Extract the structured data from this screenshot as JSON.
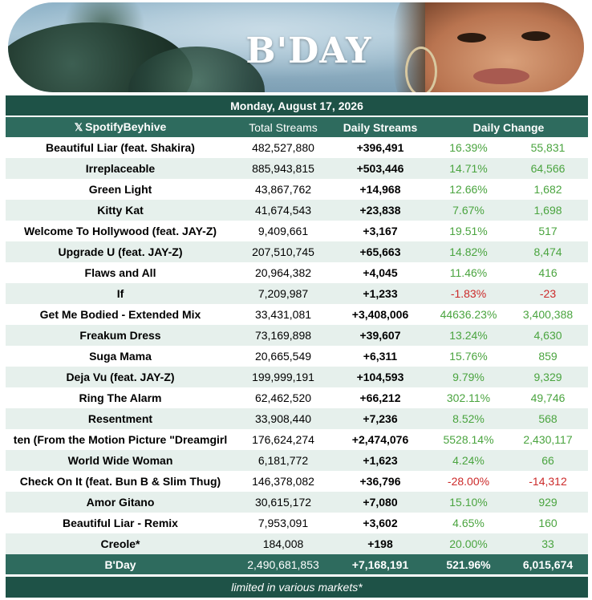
{
  "banner": {
    "title": "B'DAY"
  },
  "date": "Monday, August 17, 2026",
  "headers": {
    "account": "SpotifyBeyhive",
    "total": "Total Streams",
    "daily": "Daily Streams",
    "change": "Daily Change"
  },
  "rows": [
    {
      "song": "Beautiful Liar (feat. Shakira)",
      "total": "482,527,880",
      "daily": "+396,491",
      "pct": "16.39%",
      "diff": "55,831",
      "trend": "pos"
    },
    {
      "song": "Irreplaceable",
      "total": "885,943,815",
      "daily": "+503,446",
      "pct": "14.71%",
      "diff": "64,566",
      "trend": "pos"
    },
    {
      "song": "Green Light",
      "total": "43,867,762",
      "daily": "+14,968",
      "pct": "12.66%",
      "diff": "1,682",
      "trend": "pos"
    },
    {
      "song": "Kitty Kat",
      "total": "41,674,543",
      "daily": "+23,838",
      "pct": "7.67%",
      "diff": "1,698",
      "trend": "pos"
    },
    {
      "song": "Welcome To Hollywood (feat. JAY-Z)",
      "total": "9,409,661",
      "daily": "+3,167",
      "pct": "19.51%",
      "diff": "517",
      "trend": "pos"
    },
    {
      "song": "Upgrade U (feat. JAY-Z)",
      "total": "207,510,745",
      "daily": "+65,663",
      "pct": "14.82%",
      "diff": "8,474",
      "trend": "pos"
    },
    {
      "song": "Flaws and All",
      "total": "20,964,382",
      "daily": "+4,045",
      "pct": "11.46%",
      "diff": "416",
      "trend": "pos"
    },
    {
      "song": "If",
      "total": "7,209,987",
      "daily": "+1,233",
      "pct": "-1.83%",
      "diff": "-23",
      "trend": "neg"
    },
    {
      "song": "Get Me Bodied - Extended Mix",
      "total": "33,431,081",
      "daily": "+3,408,006",
      "pct": "44636.23%",
      "diff": "3,400,388",
      "trend": "pos"
    },
    {
      "song": "Freakum Dress",
      "total": "73,169,898",
      "daily": "+39,607",
      "pct": "13.24%",
      "diff": "4,630",
      "trend": "pos"
    },
    {
      "song": "Suga Mama",
      "total": "20,665,549",
      "daily": "+6,311",
      "pct": "15.76%",
      "diff": "859",
      "trend": "pos"
    },
    {
      "song": "Deja Vu (feat. JAY-Z)",
      "total": "199,999,191",
      "daily": "+104,593",
      "pct": "9.79%",
      "diff": "9,329",
      "trend": "pos"
    },
    {
      "song": "Ring The Alarm",
      "total": "62,462,520",
      "daily": "+66,212",
      "pct": "302.11%",
      "diff": "49,746",
      "trend": "pos"
    },
    {
      "song": "Resentment",
      "total": "33,908,440",
      "daily": "+7,236",
      "pct": "8.52%",
      "diff": "568",
      "trend": "pos"
    },
    {
      "song": "ten (From the Motion Picture \"Dreamgirl",
      "total": "176,624,274",
      "daily": "+2,474,076",
      "pct": "5528.14%",
      "diff": "2,430,117",
      "trend": "pos"
    },
    {
      "song": "World Wide Woman",
      "total": "6,181,772",
      "daily": "+1,623",
      "pct": "4.24%",
      "diff": "66",
      "trend": "pos"
    },
    {
      "song": "Check On It (feat. Bun B & Slim Thug)",
      "total": "146,378,082",
      "daily": "+36,796",
      "pct": "-28.00%",
      "diff": "-14,312",
      "trend": "neg"
    },
    {
      "song": "Amor Gitano",
      "total": "30,615,172",
      "daily": "+7,080",
      "pct": "15.10%",
      "diff": "929",
      "trend": "pos"
    },
    {
      "song": "Beautiful Liar - Remix",
      "total": "7,953,091",
      "daily": "+3,602",
      "pct": "4.65%",
      "diff": "160",
      "trend": "pos"
    },
    {
      "song": "Creole*",
      "total": "184,008",
      "daily": "+198",
      "pct": "20.00%",
      "diff": "33",
      "trend": "pos"
    }
  ],
  "totals": {
    "song": "B'Day",
    "total": "2,490,681,853",
    "daily": "+7,168,191",
    "pct": "521.96%",
    "diff": "6,015,674"
  },
  "footnote": "limited in various markets*",
  "colors": {
    "header": "#2e6b5e",
    "dark": "#1e5247",
    "positive": "#4aa43f",
    "negative": "#cc2a2a",
    "stripe": "#e6f0ec"
  },
  "icons": {
    "account": "x-logo-icon"
  }
}
